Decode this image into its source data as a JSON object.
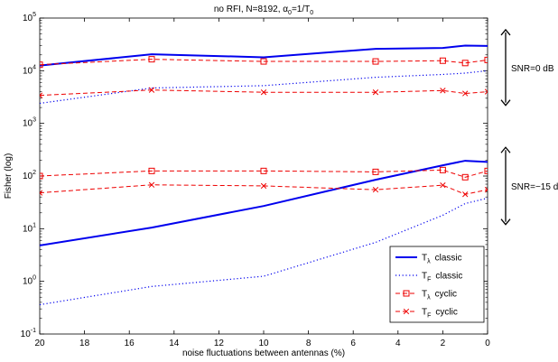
{
  "chart_data": {
    "type": "line",
    "title": "no RFI, N=8192, α",
    "title_sub0": "0",
    "title_mid": "=1/T",
    "title_sub1": "0",
    "xlabel": "noise fluctuations between antennas (%)",
    "ylabel": "Fisher (log)",
    "x_reversed": true,
    "xlim": [
      0,
      20
    ],
    "xticks": [
      20,
      18,
      16,
      14,
      12,
      10,
      8,
      6,
      4,
      2,
      0
    ],
    "yscale": "log",
    "ylim": [
      0.1,
      100000
    ],
    "yticks": [
      {
        "base": "10",
        "exp": "-1",
        "value": 0.1
      },
      {
        "base": "10",
        "exp": "0",
        "value": 1
      },
      {
        "base": "10",
        "exp": "1",
        "value": 10
      },
      {
        "base": "10",
        "exp": "2",
        "value": 100
      },
      {
        "base": "10",
        "exp": "3",
        "value": 1000
      },
      {
        "base": "10",
        "exp": "4",
        "value": 10000
      },
      {
        "base": "10",
        "exp": "5",
        "value": 100000
      }
    ],
    "grid": false,
    "legend_position": "bottom-right",
    "colors": {
      "blue": "#0000ee",
      "red": "#ee0000"
    },
    "series": [
      {
        "group": "snr0",
        "style": "T_lambda_classic",
        "x": [
          20,
          15,
          10,
          5,
          2,
          1,
          0
        ],
        "y": [
          12500,
          20500,
          18000,
          26000,
          27000,
          30000,
          29500
        ]
      },
      {
        "group": "snr0",
        "style": "T_F_classic",
        "x": [
          20,
          15,
          10,
          5,
          2,
          1,
          0
        ],
        "y": [
          2400,
          4700,
          5200,
          7500,
          8500,
          9000,
          10000
        ]
      },
      {
        "group": "snr0",
        "style": "T_lambda_cyclic",
        "x": [
          20,
          15,
          10,
          5,
          2,
          1,
          0
        ],
        "y": [
          13000,
          16500,
          15000,
          15000,
          15500,
          14000,
          16000
        ]
      },
      {
        "group": "snr0",
        "style": "T_F_cyclic",
        "x": [
          20,
          15,
          10,
          5,
          2,
          1,
          0
        ],
        "y": [
          3400,
          4300,
          3900,
          3900,
          4200,
          3700,
          4000
        ]
      },
      {
        "group": "snr15",
        "style": "T_lambda_classic",
        "x": [
          20,
          15,
          10,
          5,
          2,
          1,
          0
        ],
        "y": [
          4.8,
          10.5,
          27,
          85,
          160,
          195,
          185
        ]
      },
      {
        "group": "snr15",
        "style": "T_F_classic",
        "x": [
          20,
          15,
          10,
          5,
          2,
          1,
          0
        ],
        "y": [
          0.36,
          0.8,
          1.25,
          5.5,
          18,
          30,
          38
        ]
      },
      {
        "group": "snr15",
        "style": "T_lambda_cyclic",
        "x": [
          20,
          15,
          10,
          5,
          2,
          1,
          0
        ],
        "y": [
          100,
          125,
          125,
          120,
          130,
          95,
          125
        ]
      },
      {
        "group": "snr15",
        "style": "T_F_cyclic",
        "x": [
          20,
          15,
          10,
          5,
          2,
          1,
          0
        ],
        "y": [
          48,
          68,
          65,
          55,
          67,
          45,
          55
        ]
      }
    ],
    "legend": [
      {
        "style": "T_lambda_classic",
        "symbol": "T",
        "sub": "λ",
        "text": "classic"
      },
      {
        "style": "T_F_classic",
        "symbol": "T",
        "sub": "F",
        "text": "classic"
      },
      {
        "style": "T_lambda_cyclic",
        "symbol": "T",
        "sub": "λ",
        "text": "cyclic"
      },
      {
        "style": "T_F_cyclic",
        "symbol": "T",
        "sub": "F",
        "text": "cyclic"
      }
    ],
    "annotations": [
      {
        "label": "SNR=0 dB",
        "y_top": 60000,
        "y_bottom": 2200
      },
      {
        "label": "SNR=−15 dB",
        "y_top": 350,
        "y_bottom": 12
      }
    ]
  }
}
